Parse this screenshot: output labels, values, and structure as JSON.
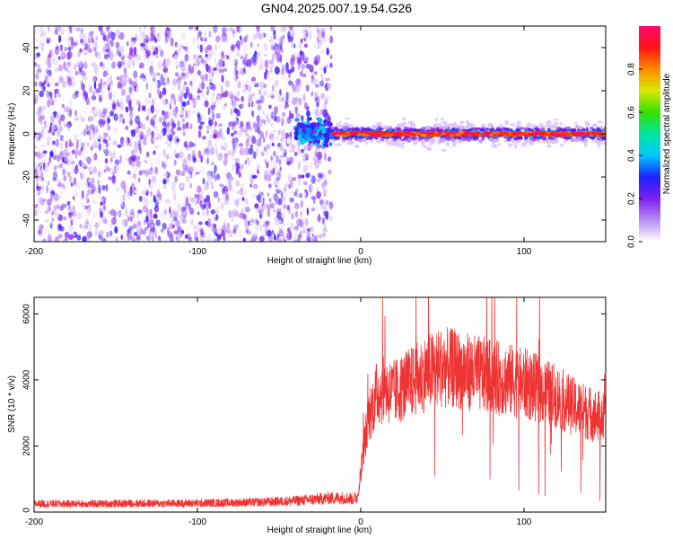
{
  "title": "GN04.2025.007.19.54.G26",
  "chart_data": [
    {
      "type": "heatmap",
      "xlabel": "Height of straight line (km)",
      "ylabel": "Frequency (Hz)",
      "xlim": [
        -200,
        150
      ],
      "ylim": [
        -50,
        50
      ],
      "xticks": [
        -200,
        -100,
        0,
        100
      ],
      "yticks": [
        -40,
        -20,
        0,
        20,
        40
      ],
      "colorbar": {
        "label": "Normalized spectral amplitude",
        "range": [
          0,
          1
        ],
        "ticks": [
          "0.0",
          "0.2",
          "0.4",
          "0.6",
          "0.8"
        ],
        "colors": [
          "#ffffff",
          "#b98cf2",
          "#7e1ef0",
          "#1b22ff",
          "#00c8ff",
          "#00e6a0",
          "#35e000",
          "#d8ea00",
          "#ff8a00",
          "#ff1414",
          "#ff0a6e"
        ]
      },
      "regions": [
        {
          "x": [
            -200,
            -18
          ],
          "freq_band": [
            -50,
            50
          ],
          "amplitude_range": [
            0.0,
            0.15
          ],
          "description_level": "scattered weak speckle"
        },
        {
          "x": [
            -40,
            -18
          ],
          "freq_center": 1,
          "freq_width": 6,
          "amplitude_range": [
            0.2,
            0.45
          ]
        },
        {
          "x": [
            -18,
            150
          ],
          "freq_center": 0,
          "freq_width": 5,
          "amplitude_range": [
            0.8,
            1.0
          ]
        }
      ]
    },
    {
      "type": "line",
      "xlabel": "Height of straight line (km)",
      "ylabel": "SNR (10 * v/v)",
      "xlim": [
        -200,
        150
      ],
      "ylim": [
        0,
        6500
      ],
      "xticks": [
        -200,
        -100,
        0,
        100
      ],
      "yticks": [
        0,
        2000,
        4000,
        6000
      ],
      "series": [
        {
          "color": "#ee3333",
          "x": [
            -200,
            -180,
            -160,
            -140,
            -120,
            -100,
            -80,
            -60,
            -40,
            -30,
            -20,
            -10,
            -5,
            -2,
            0,
            2,
            5,
            10,
            15,
            20,
            30,
            40,
            50,
            60,
            70,
            80,
            90,
            100,
            110,
            120,
            130,
            140,
            150
          ],
          "y": [
            250,
            250,
            250,
            260,
            260,
            270,
            280,
            300,
            340,
            380,
            420,
            430,
            400,
            450,
            1200,
            2000,
            2900,
            3600,
            3700,
            3600,
            3900,
            4200,
            4400,
            4300,
            4200,
            4100,
            4000,
            3900,
            3700,
            3500,
            3200,
            3000,
            2800
          ]
        }
      ]
    }
  ]
}
